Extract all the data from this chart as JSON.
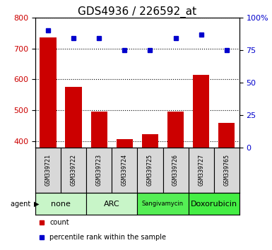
{
  "title": "GDS4936 / 226592_at",
  "samples": [
    "GSM339721",
    "GSM339722",
    "GSM339723",
    "GSM339724",
    "GSM339725",
    "GSM339726",
    "GSM339727",
    "GSM339765"
  ],
  "counts": [
    735,
    577,
    497,
    408,
    422,
    496,
    614,
    460
  ],
  "percentiles": [
    90,
    84,
    84,
    75,
    75,
    84,
    87,
    75
  ],
  "agents": [
    {
      "label": "none",
      "color": "#c8f5c8",
      "span": [
        0,
        2
      ],
      "font_size": 8
    },
    {
      "label": "ARC",
      "color": "#c8f5c8",
      "span": [
        2,
        4
      ],
      "font_size": 8
    },
    {
      "label": "Sangivamycin",
      "color": "#55ee55",
      "span": [
        4,
        6
      ],
      "font_size": 6
    },
    {
      "label": "Doxorubicin",
      "color": "#44ee44",
      "span": [
        6,
        8
      ],
      "font_size": 8
    }
  ],
  "ylim_left": [
    380,
    800
  ],
  "ylim_right": [
    0,
    100
  ],
  "yticks_left": [
    400,
    500,
    600,
    700,
    800
  ],
  "yticks_right": [
    0,
    25,
    50,
    75,
    100
  ],
  "bar_color": "#cc0000",
  "dot_color": "#0000cc",
  "sample_bg": "#d8d8d8",
  "title_fontsize": 11,
  "tick_fontsize": 8,
  "label_fontsize": 6
}
